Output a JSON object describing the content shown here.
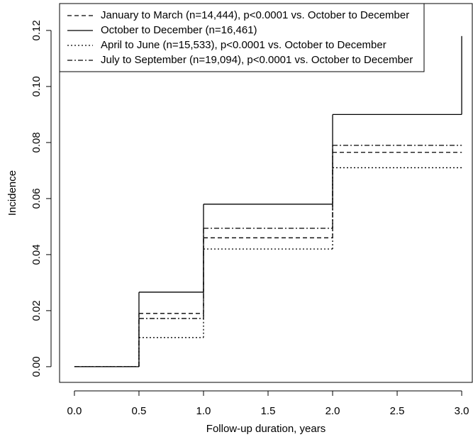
{
  "chart_data": {
    "type": "step",
    "xlabel": "Follow-up duration, years",
    "ylabel": "Incidence",
    "x": [
      0,
      0.5,
      1.0,
      2.0,
      3.0
    ],
    "series": [
      {
        "name": "January to March (n=14,444), p<0.0001 vs. October to December",
        "color": "#000000",
        "linestyle": "dashed",
        "values": [
          0,
          0.019,
          0.046,
          0.0765,
          0.0765
        ]
      },
      {
        "name": "October to December (n=16,461)",
        "color": "#000000",
        "linestyle": "solid",
        "values": [
          0,
          0.0266,
          0.058,
          0.09,
          0.118
        ]
      },
      {
        "name": "April to June (n=15,533), p<0.0001 vs. October to December",
        "color": "#000000",
        "linestyle": "dotted",
        "values": [
          0,
          0.0104,
          0.042,
          0.071,
          0.071
        ]
      },
      {
        "name": "July to September (n=19,094), p<0.0001 vs. October to December",
        "color": "#000000",
        "linestyle": "dashdot",
        "values": [
          0,
          0.0172,
          0.0494,
          0.079,
          0.079
        ]
      }
    ],
    "xlim": [
      -0.115,
      3.082
    ],
    "ylim": [
      -0.0056,
      0.1296
    ],
    "xticks": [
      {
        "value": 0,
        "label": "0.0"
      },
      {
        "value": 0.5,
        "label": "0.5"
      },
      {
        "value": 1,
        "label": "1.0"
      },
      {
        "value": 1.5,
        "label": "1.5"
      },
      {
        "value": 2,
        "label": "2.0"
      },
      {
        "value": 2.5,
        "label": "2.5"
      },
      {
        "value": 3,
        "label": "3.0"
      }
    ],
    "yticks": [
      {
        "value": 0,
        "label": "0.00"
      },
      {
        "value": 0.02,
        "label": "0.02"
      },
      {
        "value": 0.04,
        "label": "0.04"
      },
      {
        "value": 0.06,
        "label": "0.06"
      },
      {
        "value": 0.08,
        "label": "0.08"
      },
      {
        "value": 0.1,
        "label": "0.10"
      },
      {
        "value": 0.12,
        "label": "0.12"
      }
    ],
    "legend": "top-left"
  }
}
